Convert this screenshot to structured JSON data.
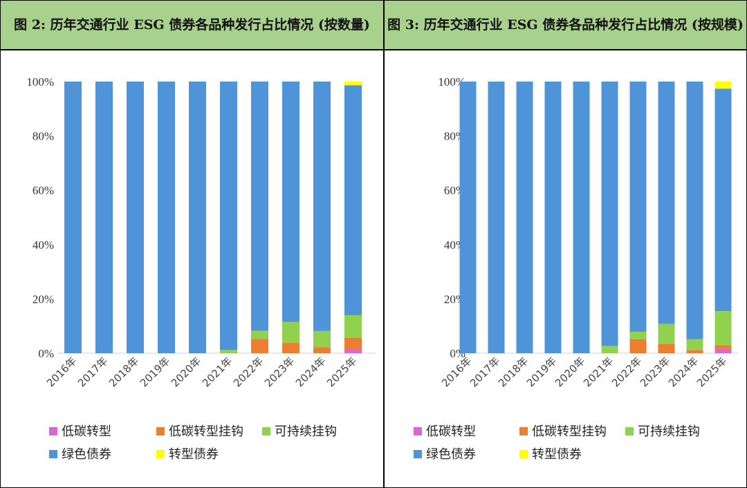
{
  "chart_data": [
    {
      "type": "bar",
      "stacked": true,
      "title": "图 2: 历年交通行业 ESG 债券各品种发行占比情况 (按数量)",
      "categories": [
        "2016年",
        "2017年",
        "2018年",
        "2019年",
        "2020年",
        "2021年",
        "2022年",
        "2023年",
        "2024年",
        "2025年"
      ],
      "ylim": [
        0,
        100
      ],
      "yticks": [
        "0%",
        "20%",
        "40%",
        "60%",
        "80%",
        "100%"
      ],
      "grid": false,
      "legend_position": "bottom",
      "series": [
        {
          "name": "低碳转型",
          "color": "#d966d6",
          "values": [
            0,
            0,
            0,
            0,
            0,
            0,
            0,
            0,
            0,
            1.4
          ]
        },
        {
          "name": "低碳转型挂钩",
          "color": "#ed7d31",
          "values": [
            0,
            0,
            0,
            0,
            0,
            0,
            5.2,
            3.8,
            2.2,
            4.3
          ]
        },
        {
          "name": "可持续挂钩",
          "color": "#92d050",
          "values": [
            0,
            0,
            0,
            0,
            0,
            1.2,
            3.1,
            7.7,
            6.0,
            8.3
          ]
        },
        {
          "name": "绿色债券",
          "color": "#4f94d9",
          "values": [
            100,
            100,
            100,
            100,
            100,
            98.8,
            91.7,
            88.5,
            91.8,
            84.6
          ]
        },
        {
          "name": "转型债券",
          "color": "#ffff00",
          "values": [
            0,
            0,
            0,
            0,
            0,
            0,
            0,
            0,
            0,
            1.4
          ]
        }
      ]
    },
    {
      "type": "bar",
      "stacked": true,
      "title": "图 3: 历年交通行业 ESG 债券各品种发行占比情况 (按规模)",
      "categories": [
        "2016年",
        "2017年",
        "2018年",
        "2019年",
        "2020年",
        "2021年",
        "2022年",
        "2023年",
        "2024年",
        "2025年"
      ],
      "ylim": [
        0,
        100
      ],
      "yticks": [
        "0%",
        "20%",
        "40%",
        "60%",
        "80%",
        "100%"
      ],
      "grid": false,
      "legend_position": "bottom",
      "series": [
        {
          "name": "低碳转型",
          "color": "#d966d6",
          "values": [
            0,
            0,
            0,
            0,
            0,
            0,
            0,
            0,
            0,
            1.6
          ]
        },
        {
          "name": "低碳转型挂钩",
          "color": "#ed7d31",
          "values": [
            0,
            0,
            0,
            0,
            0,
            0,
            5.1,
            3.4,
            1.2,
            1.4
          ]
        },
        {
          "name": "可持续挂钩",
          "color": "#92d050",
          "values": [
            0,
            0,
            0,
            0,
            0,
            2.7,
            2.8,
            7.4,
            4.0,
            12.5
          ]
        },
        {
          "name": "绿色债券",
          "color": "#4f94d9",
          "values": [
            100,
            100,
            100,
            100,
            100,
            97.3,
            92.1,
            89.2,
            94.8,
            81.9
          ]
        },
        {
          "name": "转型债券",
          "color": "#ffff00",
          "values": [
            0,
            0,
            0,
            0,
            0,
            0,
            0,
            0,
            0,
            2.6
          ]
        }
      ]
    }
  ]
}
